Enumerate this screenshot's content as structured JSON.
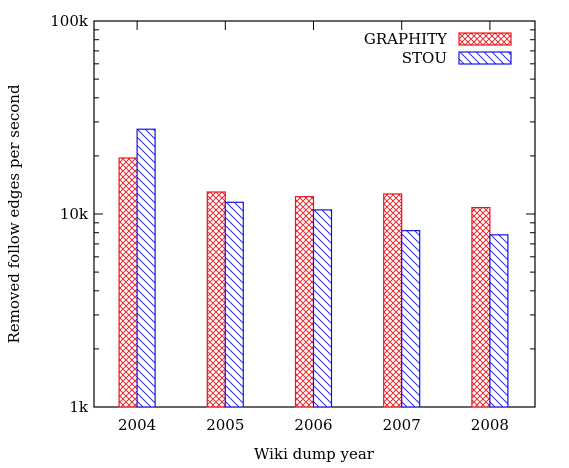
{
  "chart_data": {
    "type": "bar",
    "title": "",
    "xlabel": "Wiki dump year",
    "ylabel": "Removed follow edges per second",
    "yscale": "log",
    "ylim": [
      1000,
      100000
    ],
    "yticks": [
      {
        "value": 1000,
        "label": "1k"
      },
      {
        "value": 10000,
        "label": "10k"
      },
      {
        "value": 100000,
        "label": "100k"
      }
    ],
    "categories": [
      "2004",
      "2005",
      "2006",
      "2007",
      "2008"
    ],
    "series": [
      {
        "name": "GRAPHITY",
        "color": "#e8141e",
        "pattern": "crosshatch",
        "values": [
          19500,
          13000,
          12300,
          12700,
          10800
        ]
      },
      {
        "name": "STOU",
        "color": "#1414e0",
        "pattern": "diagonal",
        "values": [
          27500,
          11500,
          10500,
          8200,
          7800
        ]
      }
    ],
    "legend_position": "top-right",
    "grid": false
  }
}
